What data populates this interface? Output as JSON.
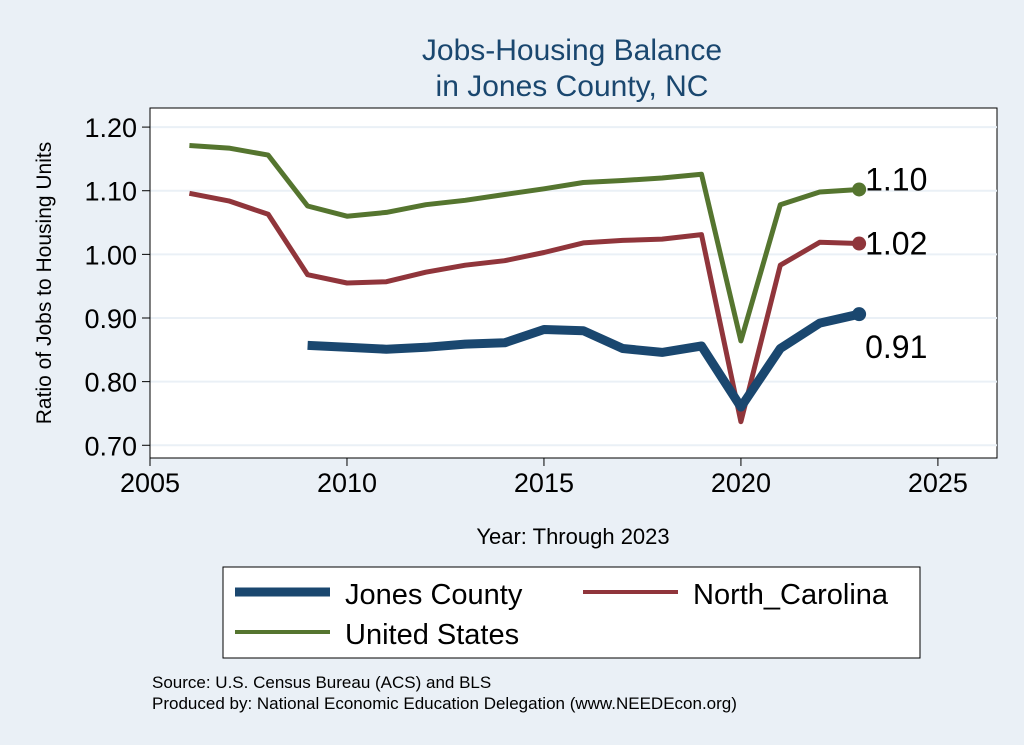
{
  "chart_data": {
    "type": "line",
    "title": [
      "Jobs-Housing Balance",
      "in Jones County, NC"
    ],
    "xlabel": "Year: Through 2023",
    "ylabel": "Ratio of Jobs to Housing Units",
    "xlim": [
      2005,
      2026.5
    ],
    "ylim": [
      0.68,
      1.23
    ],
    "xticks": [
      2005,
      2010,
      2015,
      2020,
      2025
    ],
    "yticks": [
      0.7,
      0.8,
      0.9,
      1.0,
      1.1,
      1.2
    ],
    "ytick_labels": [
      "0.70",
      "0.80",
      "0.90",
      "1.00",
      "1.10",
      "1.20"
    ],
    "grid": true,
    "series": [
      {
        "name": "Jones County",
        "color": "#1a476f",
        "x": [
          2009,
          2010,
          2011,
          2012,
          2013,
          2014,
          2015,
          2016,
          2017,
          2018,
          2019,
          2020,
          2021,
          2022,
          2023
        ],
        "values": [
          0.857,
          0.854,
          0.851,
          0.854,
          0.859,
          0.861,
          0.882,
          0.88,
          0.852,
          0.846,
          0.856,
          0.76,
          0.852,
          0.892,
          0.906
        ],
        "end_label": "0.91"
      },
      {
        "name": "North_Carolina",
        "color": "#90353b",
        "x": [
          2006,
          2007,
          2008,
          2009,
          2010,
          2011,
          2012,
          2013,
          2014,
          2015,
          2016,
          2017,
          2018,
          2019,
          2020,
          2021,
          2022,
          2023
        ],
        "values": [
          1.096,
          1.084,
          1.063,
          0.968,
          0.955,
          0.957,
          0.972,
          0.983,
          0.99,
          1.003,
          1.018,
          1.022,
          1.024,
          1.031,
          0.737,
          0.983,
          1.019,
          1.017
        ],
        "end_label": "1.02"
      },
      {
        "name": "United States",
        "color": "#55752f",
        "x": [
          2006,
          2007,
          2008,
          2009,
          2010,
          2011,
          2012,
          2013,
          2014,
          2015,
          2016,
          2017,
          2018,
          2019,
          2020,
          2021,
          2022,
          2023
        ],
        "values": [
          1.171,
          1.167,
          1.156,
          1.076,
          1.06,
          1.066,
          1.078,
          1.085,
          1.094,
          1.103,
          1.113,
          1.116,
          1.12,
          1.126,
          0.864,
          1.078,
          1.098,
          1.102
        ],
        "end_label": "1.10"
      }
    ],
    "legend": [
      "Jones County",
      "North_Carolina",
      "United States"
    ],
    "notes": [
      "Source: U.S. Census Bureau (ACS) and BLS",
      "Produced by: National Economic Education Delegation (www.NEEDEcon.org)"
    ]
  }
}
